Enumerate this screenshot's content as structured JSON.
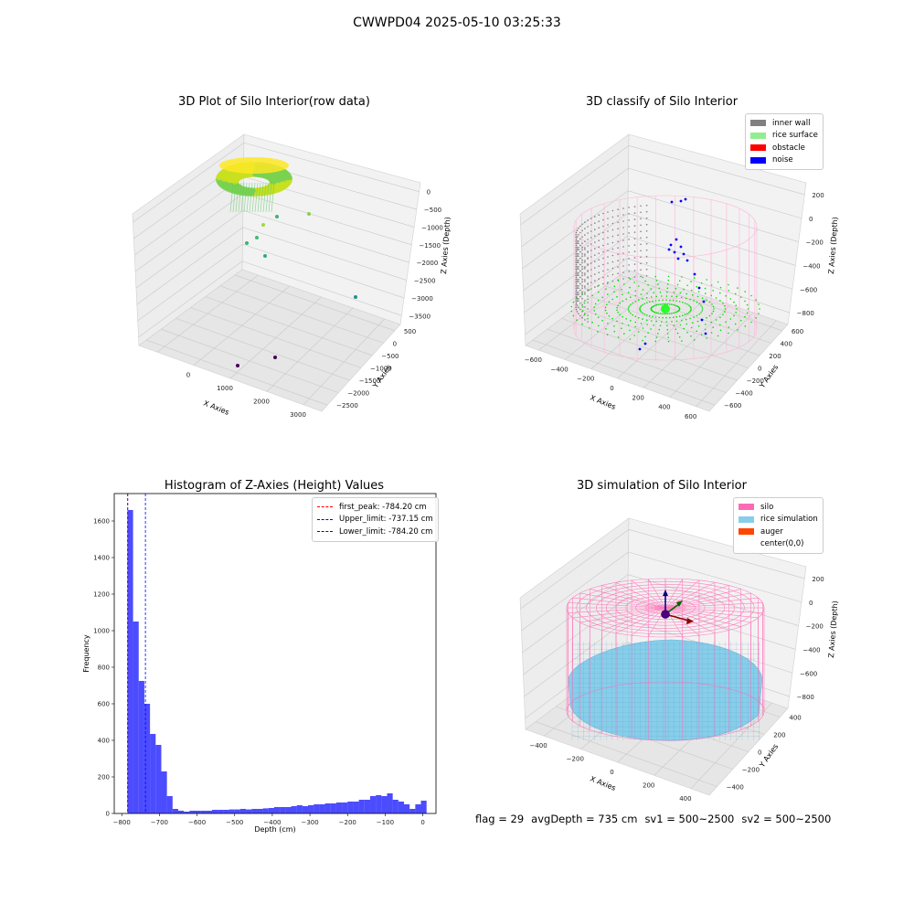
{
  "figure": {
    "suptitle": "CWWPD04 2025-05-10 03:25:33",
    "footer": {
      "flag": "flag = 29",
      "avg_depth": "avgDepth = 735 cm",
      "sv1": "sv1 = 500~2500",
      "sv2": "sv2 = 500~2500"
    }
  },
  "panels": {
    "raw": {
      "title": "3D Plot of Silo Interior(row data)",
      "xlabel": "X Axies",
      "ylabel": "Y Axies",
      "zlabel": "Z Axies (Depth)",
      "x_ticks": [
        "0",
        "1000",
        "2000",
        "3000"
      ],
      "y_ticks": [
        "500",
        "0",
        "−500",
        "−1000",
        "−1500",
        "−2000",
        "−2500"
      ],
      "z_ticks": [
        "0",
        "−500",
        "−1000",
        "−1500",
        "−2000",
        "−2500",
        "−3000",
        "−3500"
      ]
    },
    "classify": {
      "title": "3D classify of Silo Interior",
      "xlabel": "X Axies",
      "ylabel": "Y Axies",
      "zlabel": "Z Axies (Depth)",
      "x_ticks": [
        "−600",
        "−400",
        "−200",
        "0",
        "200",
        "400",
        "600"
      ],
      "y_ticks": [
        "600",
        "400",
        "200",
        "0",
        "−200",
        "−400",
        "−600"
      ],
      "z_ticks": [
        "200",
        "0",
        "−200",
        "−400",
        "−600",
        "−800"
      ],
      "legend": [
        {
          "label": "inner wall",
          "color": "#808080"
        },
        {
          "label": "rice surface",
          "color": "#90EE90"
        },
        {
          "label": "obstacle",
          "color": "#FF0000"
        },
        {
          "label": "noise",
          "color": "#0000FF"
        }
      ]
    },
    "histogram": {
      "title": "Histogram of Z-Axies (Height) Values",
      "legend": [
        {
          "label": "first_peak: -784.20 cm",
          "color": "#ff0000"
        },
        {
          "label": "Upper_limit: -737.15 cm",
          "color": "#0000ff"
        },
        {
          "label": "Lower_limit: -784.20 cm",
          "color": "#0000ff"
        }
      ]
    },
    "simulation": {
      "title": "3D simulation of Silo Interior",
      "xlabel": "X Axies",
      "ylabel": "Y Axies",
      "zlabel": "Z Axies (Depth)",
      "x_ticks": [
        "−400",
        "−200",
        "0",
        "200",
        "400"
      ],
      "y_ticks": [
        "400",
        "200",
        "0",
        "−200",
        "−400"
      ],
      "z_ticks": [
        "200",
        "0",
        "−200",
        "−400",
        "−600",
        "−800"
      ],
      "legend": [
        {
          "label": "silo",
          "color": "#FF69B4"
        },
        {
          "label": "rice simulation",
          "color": "#87CEEB"
        },
        {
          "label": "auger",
          "color": "#FF4500"
        },
        {
          "label": "center(0,0)",
          "color": "#ffffff"
        }
      ]
    }
  },
  "chart_data": [
    {
      "type": "scatter",
      "title": "3D Plot of Silo Interior(row data)",
      "xlabel": "X Axies",
      "ylabel": "Y Axies",
      "zlabel": "Z Axies (Depth)",
      "xlim": [
        -500,
        3500
      ],
      "ylim": [
        -2500,
        700
      ],
      "zlim": [
        -3600,
        100
      ],
      "colormap": "viridis",
      "outliers": [
        {
          "x": 900,
          "y": -400,
          "z": -800
        },
        {
          "x": 1500,
          "y": 200,
          "z": -700
        },
        {
          "x": 700,
          "y": -600,
          "z": -1200
        },
        {
          "x": 2500,
          "y": -1500,
          "z": -2800
        },
        {
          "x": 1900,
          "y": -2100,
          "z": -3500
        },
        {
          "x": 2600,
          "y": -1900,
          "z": -3500
        }
      ]
    },
    {
      "type": "scatter",
      "title": "3D classify of Silo Interior",
      "xlabel": "X Axies",
      "ylabel": "Y Axies",
      "zlabel": "Z Axies (Depth)",
      "xlim": [
        -650,
        650
      ],
      "ylim": [
        -650,
        650
      ],
      "zlim": [
        -900,
        300
      ],
      "series": [
        {
          "name": "inner wall",
          "color": "#808080"
        },
        {
          "name": "rice surface",
          "color": "#90EE90"
        },
        {
          "name": "obstacle",
          "color": "#FF0000"
        },
        {
          "name": "noise",
          "color": "#0000FF"
        }
      ]
    },
    {
      "type": "bar",
      "title": "Histogram of Z-Axies (Height) Values",
      "xlabel": "Depth (cm)",
      "ylabel": "Frequency",
      "xlim": [
        -820,
        35
      ],
      "ylim": [
        0,
        1750
      ],
      "x_ticks": [
        -800,
        -700,
        -600,
        -500,
        -400,
        -300,
        -200,
        -100,
        0
      ],
      "y_ticks": [
        0,
        200,
        400,
        600,
        800,
        1000,
        1200,
        1400,
        1600
      ],
      "bin_start": -785,
      "bin_width": 15,
      "values": [
        1660,
        1050,
        725,
        600,
        435,
        375,
        230,
        95,
        25,
        15,
        10,
        15,
        15,
        15,
        15,
        20,
        20,
        20,
        22,
        22,
        25,
        22,
        25,
        25,
        28,
        30,
        35,
        35,
        35,
        40,
        45,
        40,
        45,
        50,
        50,
        55,
        55,
        60,
        60,
        65,
        65,
        75,
        75,
        95,
        100,
        95,
        110,
        75,
        65,
        50,
        25,
        50,
        70
      ],
      "color": "#0000ff",
      "vlines": [
        {
          "name": "first_peak: -784.20 cm",
          "x": -784.2,
          "color": "#ff0000"
        },
        {
          "name": "Upper_limit: -737.15 cm",
          "x": -737.15,
          "color": "#0000ff"
        },
        {
          "name": "Lower_limit: -784.20 cm",
          "x": -784.2,
          "color": "#0000ff"
        }
      ]
    },
    {
      "type": "scatter",
      "title": "3D simulation of Silo Interior",
      "xlabel": "X Axies",
      "ylabel": "Y Axies",
      "zlabel": "Z Axies (Depth)",
      "xlim": [
        -500,
        500
      ],
      "ylim": [
        -500,
        500
      ],
      "zlim": [
        -900,
        300
      ],
      "series": [
        {
          "name": "silo",
          "color": "#FF69B4"
        },
        {
          "name": "rice simulation",
          "color": "#87CEEB"
        },
        {
          "name": "auger",
          "color": "#FF4500"
        },
        {
          "name": "center(0,0)",
          "color": "#ffffff"
        }
      ]
    }
  ]
}
